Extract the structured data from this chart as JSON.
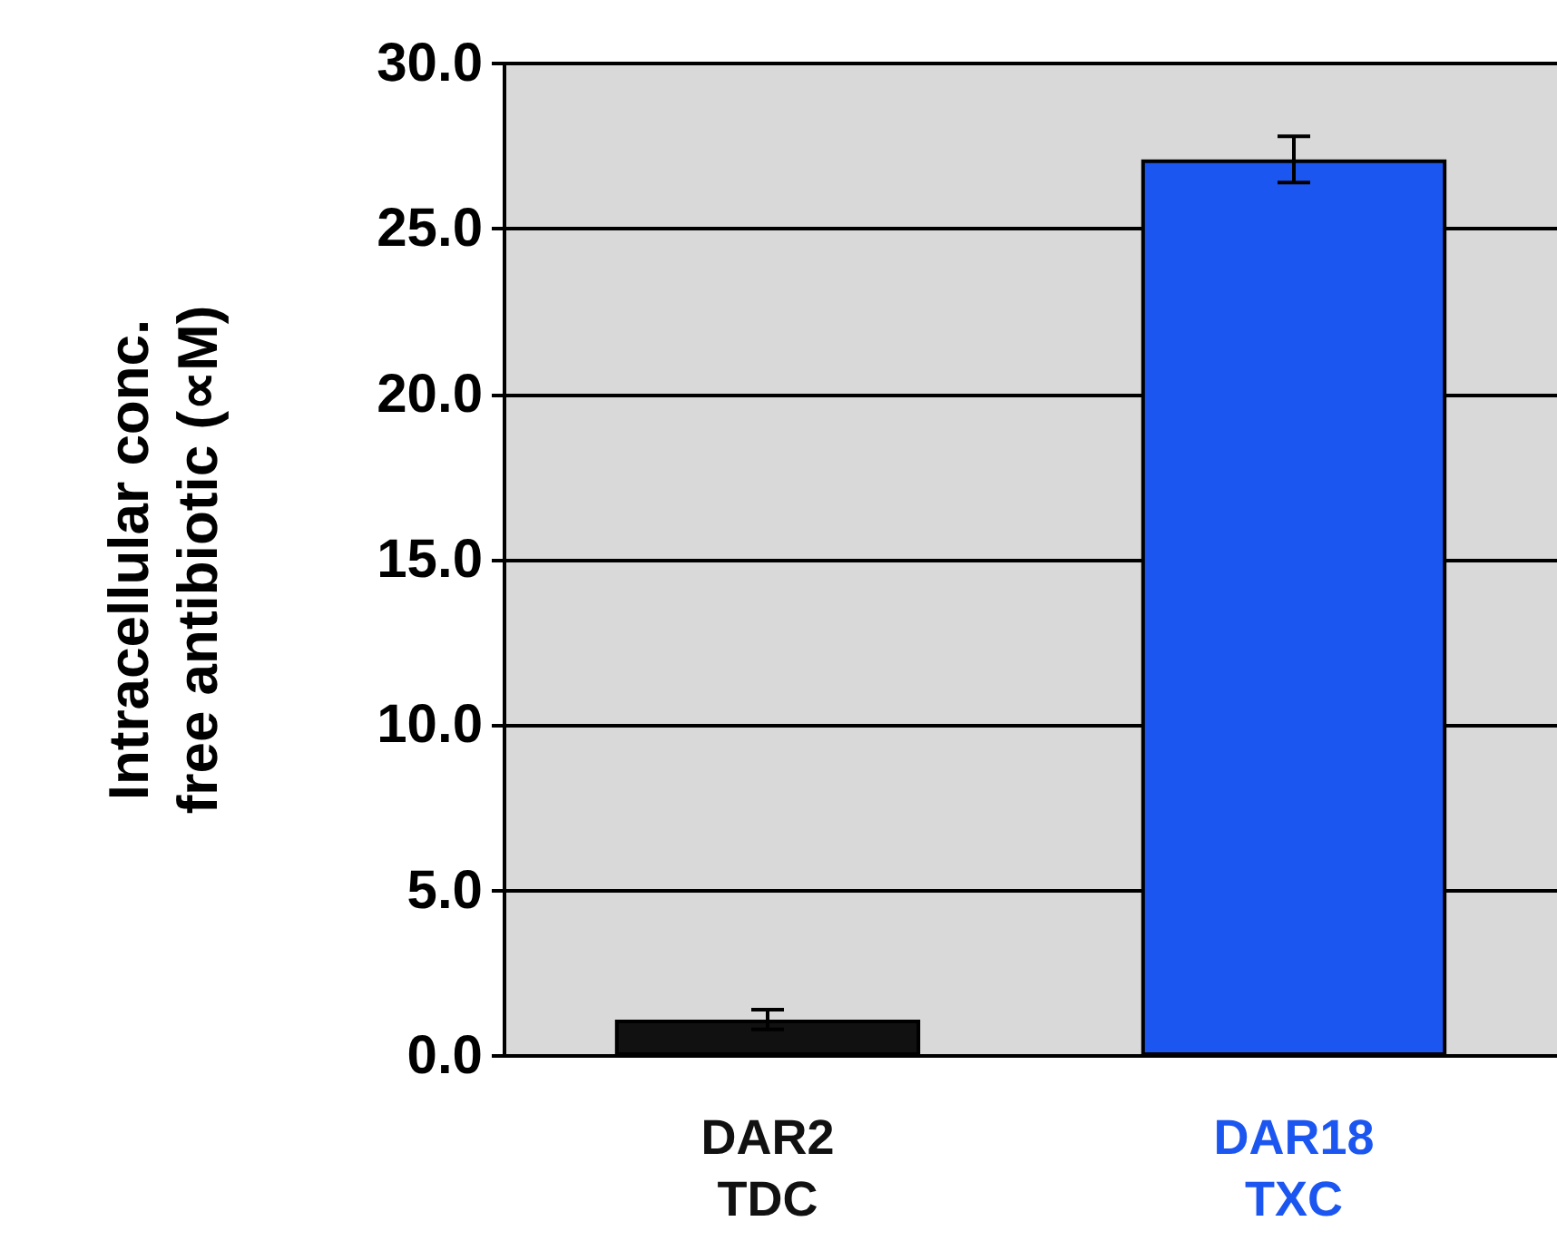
{
  "chart_data": {
    "type": "bar",
    "ylabel": "Intracellular conc.\nfree antibiotic (∝M)",
    "categories": [
      "DAR2\nTDC",
      "DAR18\nTXC"
    ],
    "values": [
      1.1,
      27.1
    ],
    "errors": [
      0.3,
      0.7
    ],
    "colors": [
      "#111111",
      "#1c56f0"
    ],
    "ylim": [
      0,
      30
    ],
    "yticks": [
      {
        "value": 0,
        "label": "0.0"
      },
      {
        "value": 5,
        "label": "5.0"
      },
      {
        "value": 10,
        "label": "10.0"
      },
      {
        "value": 15,
        "label": "15.0"
      },
      {
        "value": 20,
        "label": "20.0"
      },
      {
        "value": 25,
        "label": "25.0"
      },
      {
        "value": 30,
        "label": "30.0"
      }
    ],
    "grid": "y"
  }
}
